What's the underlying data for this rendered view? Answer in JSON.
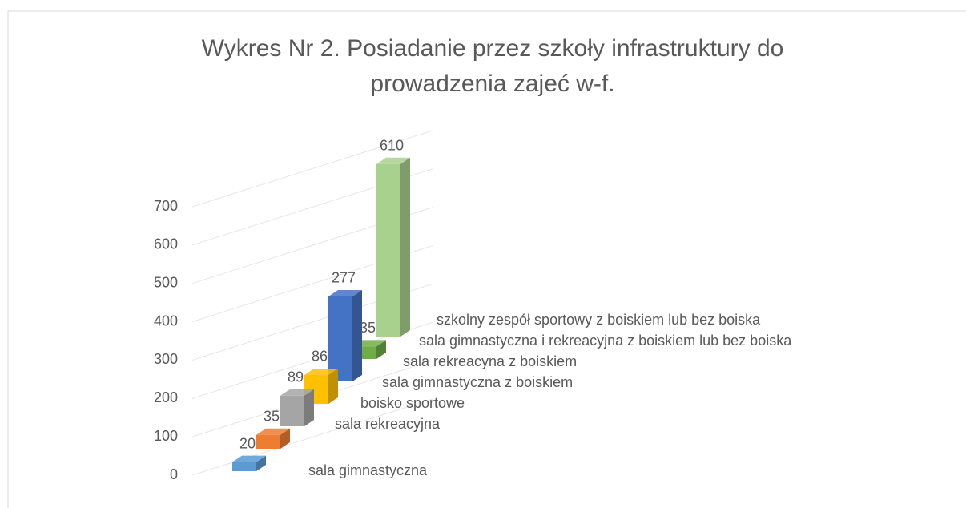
{
  "chart_data": {
    "type": "bar3d",
    "title": [
      "Wykres Nr 2. Posiadanie przez szkoły infrastruktury do",
      "prowadzenia zajeć w-f."
    ],
    "categories": [
      "sala gimnastyczna",
      "sala rekreacyjna",
      "boisko sportowe",
      "sala gimnastyczna z boiskiem",
      "sala rekreacyna z boiskiem",
      "sala gimnastyczna i rekreacyjna z boiskiem lub bez boiska",
      "szkolny zespół sportowy  z boiskiem lub bez boiska"
    ],
    "values": [
      20,
      35,
      89,
      86,
      277,
      35,
      610
    ],
    "colors": [
      "#5b9bd5",
      "#ed7d31",
      "#a5a5a5",
      "#ffc000",
      "#4472c4",
      "#70ad47",
      "#a9d18e"
    ],
    "ylim": [
      0,
      700
    ],
    "yticks": [
      0,
      100,
      200,
      300,
      400,
      500,
      600,
      700
    ],
    "grid": true
  }
}
